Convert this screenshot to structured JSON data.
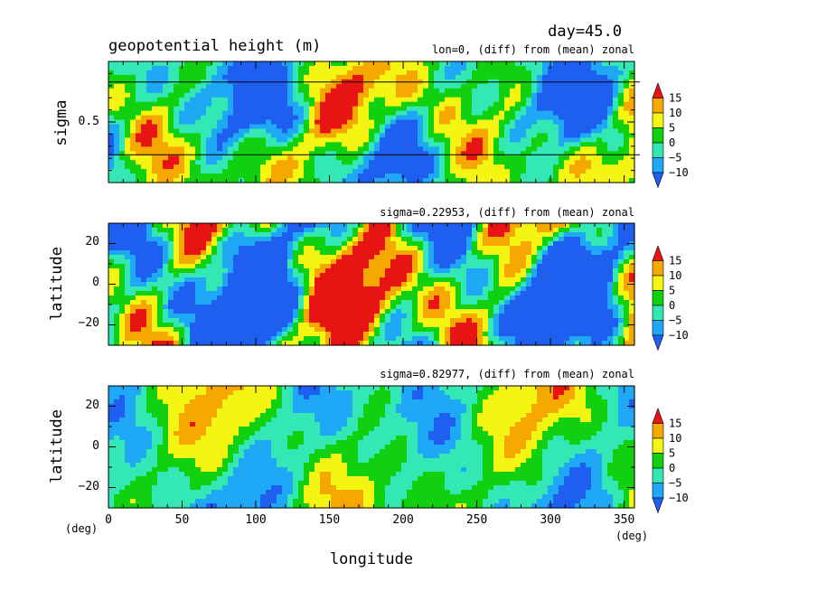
{
  "chart_data": {
    "type": "heatmap",
    "header": {
      "day_label": "day=45.0",
      "title": "geopotential height (m)",
      "xlabel": "longitude",
      "x_unit_left": "(deg)",
      "x_unit_right": "(deg)",
      "xticks": [
        0,
        50,
        100,
        150,
        200,
        250,
        300,
        350
      ],
      "xlim": [
        0,
        357
      ]
    },
    "colorbar": {
      "levels": [
        -10,
        -5,
        0,
        5,
        10,
        15
      ],
      "level_labels": [
        "15",
        "10",
        "5",
        "0",
        "−5",
        "−10"
      ],
      "colors": [
        "#1e5ff0",
        "#1ea8f5",
        "#33e8b4",
        "#10d010",
        "#f5f514",
        "#f5a800",
        "#e81414"
      ]
    },
    "panels": [
      {
        "name": "sigma-longitude",
        "subtitle": "lon=0, (diff) from (mean) zonal",
        "ylabel": "sigma",
        "ytick_labels": [
          "0.5"
        ],
        "ylim": [
          1,
          0
        ],
        "reference_levels": [
          0.83,
          0.23
        ],
        "field_seed": 3
      },
      {
        "name": "latitude-longitude-upper",
        "subtitle": "sigma=0.22953, (diff) from (mean) zonal",
        "ylabel": "latitude",
        "ytick_labels": [
          "20",
          "0",
          "−20"
        ],
        "yticks": [
          20,
          0,
          -20
        ],
        "ylim": [
          -30,
          30
        ],
        "field_seed": 7
      },
      {
        "name": "latitude-longitude-lower",
        "subtitle": "sigma=0.82977, (diff) from (mean) zonal",
        "ylabel": "latitude",
        "ytick_labels": [
          "20",
          "0",
          "−20"
        ],
        "yticks": [
          20,
          0,
          -20
        ],
        "ylim": [
          -30,
          30
        ],
        "field_seed": 11
      }
    ]
  }
}
